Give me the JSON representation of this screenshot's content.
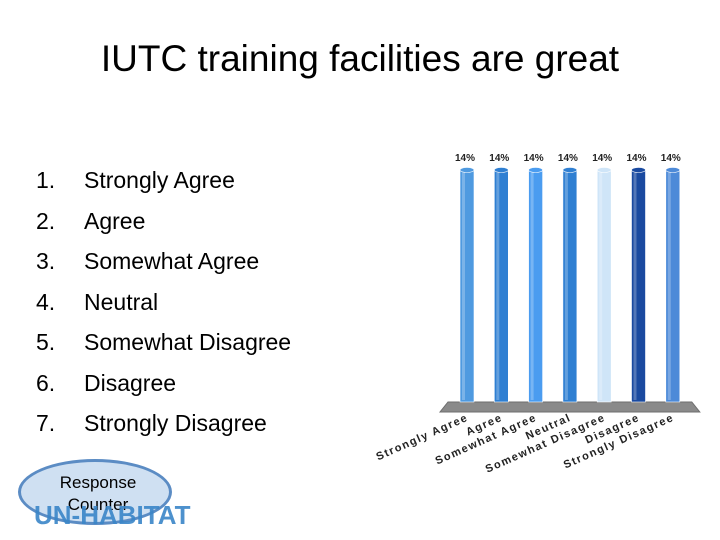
{
  "slide": {
    "title": "IUTC training facilities are great"
  },
  "options": [
    {
      "num": "1.",
      "label": "Strongly Agree"
    },
    {
      "num": "2.",
      "label": "Agree"
    },
    {
      "num": "3.",
      "label": "Somewhat Agree"
    },
    {
      "num": "4.",
      "label": "Neutral"
    },
    {
      "num": "5.",
      "label": "Somewhat Disagree"
    },
    {
      "num": "6.",
      "label": "Disagree"
    },
    {
      "num": "7.",
      "label": "Strongly Disagree"
    }
  ],
  "response_counter": {
    "line1": "Response",
    "line2": "Counter"
  },
  "logo": {
    "text": "UN-HABITAT"
  },
  "chart_data": {
    "type": "bar",
    "title": "",
    "xlabel": "",
    "ylabel": "",
    "categories": [
      "Strongly Agree",
      "Agree",
      "Somewhat Agree",
      "Neutral",
      "Somewhat Disagree",
      "Disagree",
      "Strongly Disagree"
    ],
    "values": [
      14,
      14,
      14,
      14,
      14,
      14,
      14
    ],
    "value_labels": [
      "14%",
      "14%",
      "14%",
      "14%",
      "14%",
      "14%",
      "14%"
    ],
    "ylim": [
      0,
      14
    ],
    "colors": [
      "#4f9ae0",
      "#2f7fd2",
      "#4a9cf0",
      "#2f7fd2",
      "#cfe5f8",
      "#1a4aa0",
      "#4d8ad8"
    ],
    "grid": false,
    "legend": "none"
  }
}
